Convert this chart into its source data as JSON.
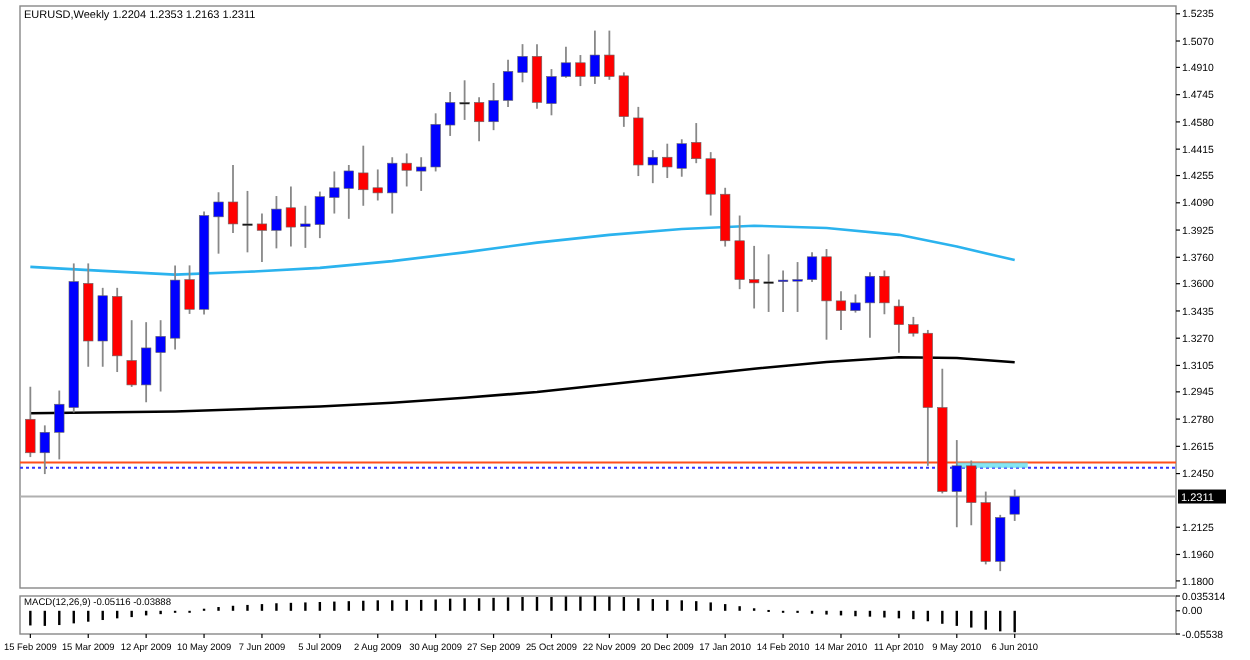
{
  "chart_data": [
    {
      "type": "candlestick",
      "title": "EURUSD,Weekly 1.2204 1.2353 1.2163 1.2311",
      "x": [
        "2009-02-15",
        "2009-02-22",
        "2009-03-01",
        "2009-03-08",
        "2009-03-15",
        "2009-03-22",
        "2009-03-29",
        "2009-04-05",
        "2009-04-12",
        "2009-04-19",
        "2009-04-26",
        "2009-05-03",
        "2009-05-10",
        "2009-05-17",
        "2009-05-24",
        "2009-05-31",
        "2009-06-07",
        "2009-06-14",
        "2009-06-21",
        "2009-06-28",
        "2009-07-05",
        "2009-07-12",
        "2009-07-19",
        "2009-07-26",
        "2009-08-02",
        "2009-08-09",
        "2009-08-16",
        "2009-08-23",
        "2009-08-30",
        "2009-09-06",
        "2009-09-13",
        "2009-09-20",
        "2009-09-27",
        "2009-10-04",
        "2009-10-11",
        "2009-10-18",
        "2009-10-25",
        "2009-11-01",
        "2009-11-08",
        "2009-11-15",
        "2009-11-22",
        "2009-11-29",
        "2009-12-06",
        "2009-12-13",
        "2009-12-20",
        "2009-12-27",
        "2010-01-03",
        "2010-01-10",
        "2010-01-17",
        "2010-01-24",
        "2010-01-31",
        "2010-02-07",
        "2010-02-14",
        "2010-02-21",
        "2010-02-28",
        "2010-03-07",
        "2010-03-14",
        "2010-03-21",
        "2010-03-28",
        "2010-04-04",
        "2010-04-11",
        "2010-04-18",
        "2010-04-25",
        "2010-05-02",
        "2010-05-09",
        "2010-05-16",
        "2010-05-23",
        "2010-05-30",
        "2010-06-06"
      ],
      "ohlc": [
        [
          1.2779,
          1.2976,
          1.255,
          1.2576
        ],
        [
          1.2576,
          1.2742,
          1.2447,
          1.27
        ],
        [
          1.27,
          1.2953,
          1.2536,
          1.287
        ],
        [
          1.285,
          1.3723,
          1.282,
          1.3613
        ],
        [
          1.3602,
          1.3723,
          1.3097,
          1.3253
        ],
        [
          1.3253,
          1.3575,
          1.3097,
          1.3527
        ],
        [
          1.3523,
          1.3575,
          1.3065,
          1.3163
        ],
        [
          1.3135,
          1.3379,
          1.2975,
          1.2987
        ],
        [
          1.2987,
          1.3367,
          1.2882,
          1.3211
        ],
        [
          1.3183,
          1.3379,
          1.2947,
          1.3281
        ],
        [
          1.327,
          1.3711,
          1.3202,
          1.3622
        ],
        [
          1.3625,
          1.3711,
          1.3417,
          1.3445
        ],
        [
          1.3445,
          1.4037,
          1.3414,
          1.4013
        ],
        [
          1.4005,
          1.4154,
          1.3782,
          1.4095
        ],
        [
          1.4095,
          1.4319,
          1.3907,
          1.3962
        ],
        [
          1.3962,
          1.4162,
          1.379,
          1.3962
        ],
        [
          1.3962,
          1.4025,
          1.3731,
          1.3923
        ],
        [
          1.3923,
          1.4131,
          1.3814,
          1.4052
        ],
        [
          1.406,
          1.4189,
          1.3825,
          1.3943
        ],
        [
          1.3946,
          1.4072,
          1.3817,
          1.3962
        ],
        [
          1.3958,
          1.4158,
          1.3876,
          1.4127
        ],
        [
          1.4122,
          1.428,
          1.4025,
          1.4181
        ],
        [
          1.4177,
          1.4319,
          1.3993,
          1.4283
        ],
        [
          1.4271,
          1.4436,
          1.4072,
          1.4169
        ],
        [
          1.4181,
          1.4292,
          1.4104,
          1.415
        ],
        [
          1.415,
          1.4366,
          1.4025,
          1.433
        ],
        [
          1.433,
          1.4389,
          1.4189,
          1.4287
        ],
        [
          1.4282,
          1.4366,
          1.4162,
          1.4307
        ],
        [
          1.4307,
          1.4632,
          1.428,
          1.4565
        ],
        [
          1.4561,
          1.4761,
          1.4495,
          1.4698
        ],
        [
          1.4698,
          1.4832,
          1.4592,
          1.4698
        ],
        [
          1.4698,
          1.473,
          1.4463,
          1.4581
        ],
        [
          1.4581,
          1.4816,
          1.453,
          1.471
        ],
        [
          1.471,
          1.4957,
          1.4671,
          1.4886
        ],
        [
          1.4879,
          1.5051,
          1.482,
          1.4977
        ],
        [
          1.4977,
          1.5051,
          1.4659,
          1.4698
        ],
        [
          1.4691,
          1.49,
          1.462,
          1.4855
        ],
        [
          1.4855,
          1.5035,
          1.4847,
          1.4938
        ],
        [
          1.4938,
          1.4985,
          1.4797,
          1.4855
        ],
        [
          1.4855,
          1.5133,
          1.481,
          1.4985
        ],
        [
          1.4985,
          1.5133,
          1.4835,
          1.4855
        ],
        [
          1.4859,
          1.488,
          1.455,
          1.4612
        ],
        [
          1.4604,
          1.4671,
          1.4252,
          1.4319
        ],
        [
          1.4319,
          1.4409,
          1.4209,
          1.4366
        ],
        [
          1.4366,
          1.4448,
          1.424,
          1.4307
        ],
        [
          1.4299,
          1.4475,
          1.4248,
          1.4448
        ],
        [
          1.4456,
          1.4573,
          1.433,
          1.4357
        ],
        [
          1.4357,
          1.4397,
          1.4013,
          1.4142
        ],
        [
          1.4142,
          1.4181,
          1.3825,
          1.386
        ],
        [
          1.386,
          1.4013,
          1.3567,
          1.3625
        ],
        [
          1.3625,
          1.3829,
          1.345,
          1.3605
        ],
        [
          1.3611,
          1.3778,
          1.3429,
          1.3611
        ],
        [
          1.3616,
          1.368,
          1.3429,
          1.3622
        ],
        [
          1.362,
          1.3731,
          1.3429,
          1.3625
        ],
        [
          1.3625,
          1.379,
          1.361,
          1.3763
        ],
        [
          1.3763,
          1.381,
          1.3261,
          1.3496
        ],
        [
          1.3496,
          1.3555,
          1.332,
          1.3437
        ],
        [
          1.3437,
          1.3535,
          1.3425,
          1.3484
        ],
        [
          1.3484,
          1.367,
          1.3273,
          1.3645
        ],
        [
          1.3645,
          1.368,
          1.3415,
          1.3484
        ],
        [
          1.3464,
          1.3504,
          1.3182,
          1.3352
        ],
        [
          1.3352,
          1.3399,
          1.328,
          1.33
        ],
        [
          1.33,
          1.332,
          1.2497,
          1.285
        ],
        [
          1.285,
          1.3085,
          1.233,
          1.2341
        ],
        [
          1.2341,
          1.2653,
          1.2125,
          1.2497
        ],
        [
          1.2497,
          1.2529,
          1.2137,
          1.2274
        ],
        [
          1.2274,
          1.2341,
          1.19,
          1.1918
        ],
        [
          1.1918,
          1.22,
          1.1859,
          1.2184
        ],
        [
          1.2204,
          1.2353,
          1.2163,
          1.2311
        ]
      ],
      "colors": [
        "#ff0000",
        "#0000ff",
        "#0000ff",
        "#0000ff",
        "#ff0000",
        "#0000ff",
        "#ff0000",
        "#ff0000",
        "#0000ff",
        "#0000ff",
        "#0000ff",
        "#ff0000",
        "#0000ff",
        "#0000ff",
        "#ff0000",
        "#000000",
        "#ff0000",
        "#0000ff",
        "#ff0000",
        "#0000ff",
        "#0000ff",
        "#0000ff",
        "#0000ff",
        "#ff0000",
        "#ff0000",
        "#0000ff",
        "#ff0000",
        "#0000ff",
        "#0000ff",
        "#0000ff",
        "#000000",
        "#ff0000",
        "#0000ff",
        "#0000ff",
        "#0000ff",
        "#ff0000",
        "#0000ff",
        "#0000ff",
        "#ff0000",
        "#0000ff",
        "#ff0000",
        "#ff0000",
        "#ff0000",
        "#0000ff",
        "#ff0000",
        "#0000ff",
        "#ff0000",
        "#ff0000",
        "#ff0000",
        "#ff0000",
        "#ff0000",
        "#000000",
        "#0000ff",
        "#0000ff",
        "#0000ff",
        "#ff0000",
        "#ff0000",
        "#0000ff",
        "#0000ff",
        "#ff0000",
        "#ff0000",
        "#ff0000",
        "#ff0000",
        "#ff0000",
        "#0000ff",
        "#ff0000",
        "#ff0000",
        "#0000ff",
        "#0000ff"
      ],
      "series": [
        {
          "type": "line",
          "color": "#2bb3ee",
          "x": [
            "2009-02-15",
            "2009-03-22",
            "2009-04-26",
            "2009-05-31",
            "2009-07-05",
            "2009-08-09",
            "2009-09-13",
            "2009-10-18",
            "2009-11-22",
            "2009-12-27",
            "2010-01-31",
            "2010-03-07",
            "2010-04-11",
            "2010-05-09",
            "2010-06-06"
          ],
          "values": [
            1.3702,
            1.3678,
            1.3655,
            1.3672,
            1.3696,
            1.3737,
            1.379,
            1.3849,
            1.3896,
            1.3931,
            1.3951,
            1.3937,
            1.3896,
            1.3825,
            1.3743
          ]
        },
        {
          "type": "line",
          "color": "#000000",
          "x": [
            "2009-02-15",
            "2009-04-26",
            "2009-07-05",
            "2009-08-09",
            "2009-09-13",
            "2009-10-18",
            "2009-11-22",
            "2009-12-27",
            "2010-01-31",
            "2010-03-07",
            "2010-04-11",
            "2010-05-09",
            "2010-06-06"
          ],
          "values": [
            1.2815,
            1.2826,
            1.2856,
            1.2879,
            1.2909,
            1.2944,
            1.2991,
            1.3038,
            1.3085,
            1.3126,
            1.3155,
            1.315,
            1.3124
          ]
        }
      ],
      "ref_lines": [
        {
          "axis": "y",
          "value": 1.2517,
          "color": "#ff4f1a"
        },
        {
          "axis": "y",
          "value": 1.2485,
          "color": "#3333ff",
          "line_style": "dotted"
        },
        {
          "axis": "y",
          "value": 1.2311,
          "label": "1.2311",
          "color": "#b0b0b0"
        }
      ],
      "xlim": [
        "2009-02-10",
        "2010-08-23"
      ],
      "ylim": [
        1.1757,
        1.5282
      ],
      "yticks": [
        1.5235,
        {
          "value": 1.507,
          "label": "1.5070"
        },
        {
          "value": 1.491,
          "label": "1.4910"
        },
        1.4745,
        {
          "value": 1.458,
          "label": "1.4580"
        },
        1.4415,
        1.4255,
        {
          "value": 1.409,
          "label": "1.4090"
        },
        1.3925,
        {
          "value": 1.376,
          "label": "1.3760"
        },
        {
          "value": 1.36,
          "label": "1.3600"
        },
        1.3435,
        {
          "value": 1.327,
          "label": "1.3270"
        },
        1.3105,
        1.2945,
        {
          "value": 1.278,
          "label": "1.2780"
        },
        1.2615,
        {
          "value": 1.245,
          "label": "1.2450"
        },
        1.2125,
        {
          "value": 1.196,
          "label": "1.1960"
        },
        {
          "value": 1.18,
          "label": "1.1800"
        }
      ],
      "tick_labels": "y"
    },
    {
      "type": "bar",
      "title": "MACD(12,26,9) -0.05116 -0.03888",
      "color": "#000000",
      "x": [
        "2009-02-15",
        "2009-02-22",
        "2009-03-01",
        "2009-03-08",
        "2009-03-15",
        "2009-03-22",
        "2009-03-29",
        "2009-04-05",
        "2009-04-12",
        "2009-04-19",
        "2009-04-26",
        "2009-05-03",
        "2009-05-10",
        "2009-05-17",
        "2009-05-24",
        "2009-05-31",
        "2009-06-07",
        "2009-06-14",
        "2009-06-21",
        "2009-06-28",
        "2009-07-05",
        "2009-07-12",
        "2009-07-19",
        "2009-07-26",
        "2009-08-02",
        "2009-08-09",
        "2009-08-16",
        "2009-08-23",
        "2009-08-30",
        "2009-09-06",
        "2009-09-13",
        "2009-09-20",
        "2009-09-27",
        "2009-10-04",
        "2009-10-11",
        "2009-10-18",
        "2009-10-25",
        "2009-11-01",
        "2009-11-08",
        "2009-11-15",
        "2009-11-22",
        "2009-11-29",
        "2009-12-06",
        "2009-12-13",
        "2009-12-20",
        "2009-12-27",
        "2010-01-03",
        "2010-01-10",
        "2010-01-17",
        "2010-01-24",
        "2010-01-31",
        "2010-02-07",
        "2010-02-14",
        "2010-02-21",
        "2010-02-28",
        "2010-03-07",
        "2010-03-14",
        "2010-03-21",
        "2010-03-28",
        "2010-04-04",
        "2010-04-11",
        "2010-04-18",
        "2010-04-25",
        "2010-05-02",
        "2010-05-09",
        "2010-05-16",
        "2010-05-23",
        "2010-05-30",
        "2010-06-06"
      ],
      "values": [
        -0.035,
        -0.036,
        -0.034,
        -0.03,
        -0.026,
        -0.022,
        -0.018,
        -0.015,
        -0.011,
        -0.008,
        -0.004,
        0.0,
        0.005,
        0.009,
        0.012,
        0.014,
        0.016,
        0.018,
        0.019,
        0.02,
        0.021,
        0.022,
        0.023,
        0.024,
        0.025,
        0.025,
        0.026,
        0.026,
        0.027,
        0.029,
        0.03,
        0.03,
        0.031,
        0.032,
        0.033,
        0.033,
        0.033,
        0.034,
        0.034,
        0.035,
        0.034,
        0.033,
        0.03,
        0.028,
        0.026,
        0.025,
        0.023,
        0.02,
        0.016,
        0.011,
        0.006,
        0.002,
        -0.002,
        -0.005,
        -0.007,
        -0.009,
        -0.011,
        -0.013,
        -0.014,
        -0.016,
        -0.018,
        -0.02,
        -0.025,
        -0.031,
        -0.036,
        -0.04,
        -0.045,
        -0.049,
        -0.05116
      ],
      "xlim": [
        "2009-02-10",
        "2010-08-23"
      ],
      "ylim": [
        -0.05538,
        0.035314
      ],
      "yticks": [
        0.035314,
        {
          "value": 0,
          "label": "0.00"
        },
        -0.05538
      ],
      "xticks": [
        {
          "value": "2009-02-15",
          "label": "15 Feb 2009"
        },
        {
          "value": "2009-03-15",
          "label": "15 Mar 2009"
        },
        {
          "value": "2009-04-12",
          "label": "12 Apr 2009"
        },
        {
          "value": "2009-05-10",
          "label": "10 May 2009"
        },
        {
          "value": "2009-06-07",
          "label": "7 Jun 2009"
        },
        {
          "value": "2009-07-05",
          "label": "5 Jul 2009"
        },
        {
          "value": "2009-08-02",
          "label": "2 Aug 2009"
        },
        {
          "value": "2009-08-30",
          "label": "30 Aug 2009"
        },
        {
          "value": "2009-09-27",
          "label": "27 Sep 2009"
        },
        {
          "value": "2009-10-25",
          "label": "25 Oct 2009"
        },
        {
          "value": "2009-11-22",
          "label": "22 Nov 2009"
        },
        {
          "value": "2009-12-20",
          "label": "20 Dec 2009"
        },
        {
          "value": "2010-01-17",
          "label": "17 Jan 2010"
        },
        {
          "value": "2010-02-14",
          "label": "14 Feb 2010"
        },
        {
          "value": "2010-03-14",
          "label": "14 Mar 2010"
        },
        {
          "value": "2010-04-11",
          "label": "11 Apr 2010"
        },
        {
          "value": "2010-05-09",
          "label": "9 May 2010"
        },
        {
          "value": "2010-06-06",
          "label": "6 Jun 2010"
        }
      ]
    }
  ]
}
